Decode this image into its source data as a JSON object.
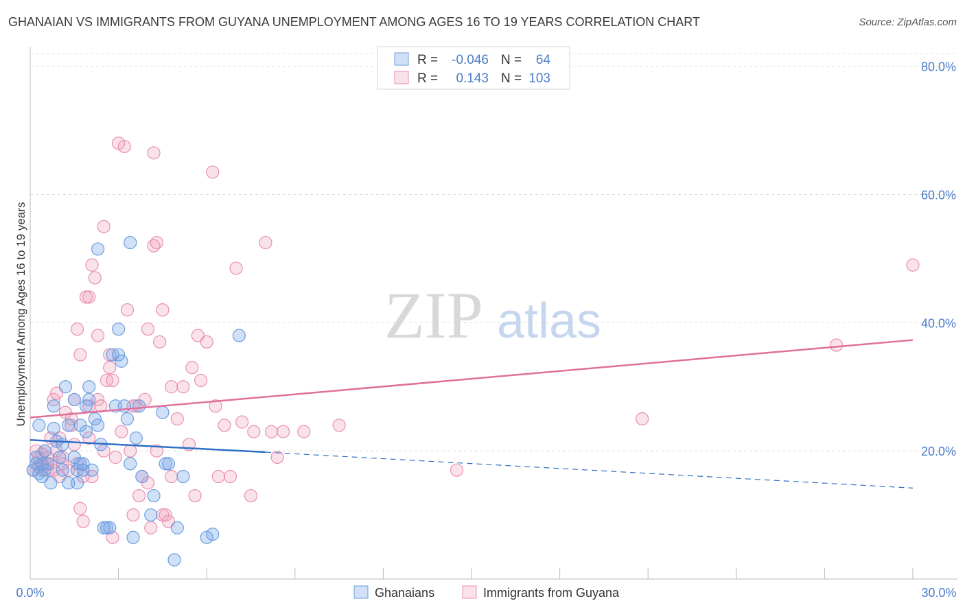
{
  "title": "GHANAIAN VS IMMIGRANTS FROM GUYANA UNEMPLOYMENT AMONG AGES 16 TO 19 YEARS CORRELATION CHART",
  "source": "Source: ZipAtlas.com",
  "watermark": {
    "zip": "ZIP",
    "atlas": "atlas"
  },
  "colors": {
    "blue": "#6a9de0",
    "blue_fill": "rgba(120,165,230,0.35)",
    "blue_line": "#2f6fc4",
    "pink": "#e98fb0",
    "pink_fill": "rgba(240,160,190,0.30)",
    "pink_line": "#e0709a",
    "tick": "#4a7cc8",
    "grid": "#dddddd"
  },
  "chart_data": {
    "type": "scatter",
    "title": "GHANAIAN VS IMMIGRANTS FROM GUYANA UNEMPLOYMENT AMONG AGES 16 TO 19 YEARS CORRELATION CHART",
    "xlabel": "",
    "ylabel": "Unemployment Among Ages 16 to 19 years",
    "xlim": [
      0,
      30
    ],
    "ylim": [
      0,
      82
    ],
    "x_tick_labels": [
      "0.0%",
      "30.0%"
    ],
    "y_ticks": [
      20,
      40,
      60,
      80
    ],
    "y_tick_labels": [
      "20.0%",
      "40.0%",
      "60.0%",
      "80.0%"
    ],
    "legend_position": "top-center",
    "legend": [
      {
        "r_label": "R =",
        "r_value": "-0.046",
        "n_label": "N =",
        "n_value": "64"
      },
      {
        "r_label": "R =",
        "r_value": "0.143",
        "n_label": "N =",
        "n_value": "103"
      }
    ],
    "series": [
      {
        "name": "Ghanaians",
        "trend": {
          "x": [
            0,
            8
          ],
          "y": [
            21.7,
            19.8
          ],
          "dashed_to": [
            30,
            14.2
          ]
        },
        "points": [
          [
            0.1,
            17
          ],
          [
            0.2,
            18
          ],
          [
            0.3,
            16.5
          ],
          [
            0.3,
            24
          ],
          [
            0.4,
            18
          ],
          [
            0.5,
            17
          ],
          [
            0.5,
            20
          ],
          [
            0.6,
            18
          ],
          [
            0.7,
            15
          ],
          [
            0.8,
            23.5
          ],
          [
            0.8,
            27
          ],
          [
            0.9,
            21.5
          ],
          [
            1.0,
            19
          ],
          [
            1.1,
            21
          ],
          [
            1.1,
            17
          ],
          [
            1.2,
            30
          ],
          [
            1.3,
            24
          ],
          [
            1.3,
            15
          ],
          [
            1.5,
            28
          ],
          [
            1.5,
            19
          ],
          [
            1.6,
            17
          ],
          [
            1.6,
            15
          ],
          [
            1.7,
            24
          ],
          [
            1.7,
            18
          ],
          [
            1.8,
            17
          ],
          [
            1.8,
            18
          ],
          [
            1.9,
            23
          ],
          [
            1.9,
            27
          ],
          [
            2.0,
            28
          ],
          [
            2.0,
            30
          ],
          [
            2.1,
            17
          ],
          [
            2.2,
            25
          ],
          [
            2.3,
            24
          ],
          [
            2.3,
            51.5
          ],
          [
            2.4,
            21
          ],
          [
            2.5,
            8
          ],
          [
            2.6,
            8
          ],
          [
            2.7,
            8
          ],
          [
            2.8,
            35
          ],
          [
            2.9,
            27
          ],
          [
            3.0,
            35
          ],
          [
            3.0,
            39
          ],
          [
            3.1,
            34
          ],
          [
            3.2,
            27
          ],
          [
            3.3,
            25
          ],
          [
            3.4,
            52.5
          ],
          [
            3.4,
            18
          ],
          [
            3.5,
            6.5
          ],
          [
            3.6,
            22
          ],
          [
            3.7,
            27
          ],
          [
            3.8,
            16
          ],
          [
            4.1,
            10
          ],
          [
            4.2,
            13
          ],
          [
            4.5,
            26
          ],
          [
            4.6,
            18
          ],
          [
            4.7,
            18
          ],
          [
            4.9,
            3
          ],
          [
            5.0,
            8
          ],
          [
            5.2,
            16
          ],
          [
            6.0,
            6.5
          ],
          [
            6.2,
            7
          ],
          [
            7.1,
            38
          ],
          [
            0.2,
            19
          ],
          [
            0.4,
            16
          ]
        ]
      },
      {
        "name": "Immigrants from Guyana",
        "trend": {
          "x": [
            0,
            30
          ],
          "y": [
            25.2,
            37.3
          ]
        },
        "points": [
          [
            0.1,
            17
          ],
          [
            0.2,
            18
          ],
          [
            0.3,
            19
          ],
          [
            0.4,
            17
          ],
          [
            0.5,
            18
          ],
          [
            0.5,
            20
          ],
          [
            0.6,
            19
          ],
          [
            0.7,
            22
          ],
          [
            0.7,
            18
          ],
          [
            0.8,
            17
          ],
          [
            0.8,
            28
          ],
          [
            0.9,
            29
          ],
          [
            1.0,
            22
          ],
          [
            1.0,
            16
          ],
          [
            1.1,
            18
          ],
          [
            1.2,
            26
          ],
          [
            1.3,
            17
          ],
          [
            1.4,
            24
          ],
          [
            1.4,
            25
          ],
          [
            1.5,
            21
          ],
          [
            1.5,
            28
          ],
          [
            1.6,
            39
          ],
          [
            1.6,
            18
          ],
          [
            1.7,
            35
          ],
          [
            1.7,
            11
          ],
          [
            1.8,
            9
          ],
          [
            1.9,
            44
          ],
          [
            2.0,
            44
          ],
          [
            2.0,
            27
          ],
          [
            2.1,
            49
          ],
          [
            2.1,
            16
          ],
          [
            2.2,
            47
          ],
          [
            2.3,
            38
          ],
          [
            2.3,
            28
          ],
          [
            2.4,
            27
          ],
          [
            2.5,
            55
          ],
          [
            2.6,
            31
          ],
          [
            2.7,
            33
          ],
          [
            2.7,
            35
          ],
          [
            2.8,
            31
          ],
          [
            2.8,
            6.5
          ],
          [
            2.9,
            19
          ],
          [
            3.0,
            68
          ],
          [
            3.2,
            67.5
          ],
          [
            3.3,
            42
          ],
          [
            3.4,
            20
          ],
          [
            3.5,
            27
          ],
          [
            3.5,
            10
          ],
          [
            3.6,
            27
          ],
          [
            3.7,
            13
          ],
          [
            3.8,
            16
          ],
          [
            3.9,
            28
          ],
          [
            4.0,
            39
          ],
          [
            4.0,
            15
          ],
          [
            4.1,
            8
          ],
          [
            4.2,
            66.5
          ],
          [
            4.2,
            52
          ],
          [
            4.3,
            52.5
          ],
          [
            4.4,
            37
          ],
          [
            4.5,
            10
          ],
          [
            4.5,
            42
          ],
          [
            4.6,
            10
          ],
          [
            4.7,
            9
          ],
          [
            4.8,
            30
          ],
          [
            4.8,
            16
          ],
          [
            5.0,
            25
          ],
          [
            5.2,
            30
          ],
          [
            5.4,
            21
          ],
          [
            5.5,
            33
          ],
          [
            5.6,
            13
          ],
          [
            5.7,
            38
          ],
          [
            5.8,
            31
          ],
          [
            6.0,
            37
          ],
          [
            6.2,
            63.5
          ],
          [
            6.3,
            27
          ],
          [
            6.4,
            16
          ],
          [
            6.6,
            24
          ],
          [
            6.8,
            16
          ],
          [
            7.0,
            48.5
          ],
          [
            7.2,
            24.5
          ],
          [
            7.5,
            13
          ],
          [
            7.6,
            23
          ],
          [
            8.0,
            52.5
          ],
          [
            8.2,
            23
          ],
          [
            8.4,
            19
          ],
          [
            8.6,
            23
          ],
          [
            9.3,
            23
          ],
          [
            10.5,
            24
          ],
          [
            14.5,
            17
          ],
          [
            20.8,
            25
          ],
          [
            27.4,
            36.5
          ],
          [
            30.0,
            49
          ],
          [
            0.3,
            17.5
          ],
          [
            0.6,
            17
          ],
          [
            0.9,
            20
          ],
          [
            1.1,
            19
          ],
          [
            2.0,
            22
          ],
          [
            3.1,
            23
          ],
          [
            0.2,
            20
          ],
          [
            0.4,
            19.5
          ],
          [
            1.8,
            16
          ],
          [
            2.5,
            20
          ],
          [
            4.3,
            20
          ]
        ]
      }
    ]
  }
}
